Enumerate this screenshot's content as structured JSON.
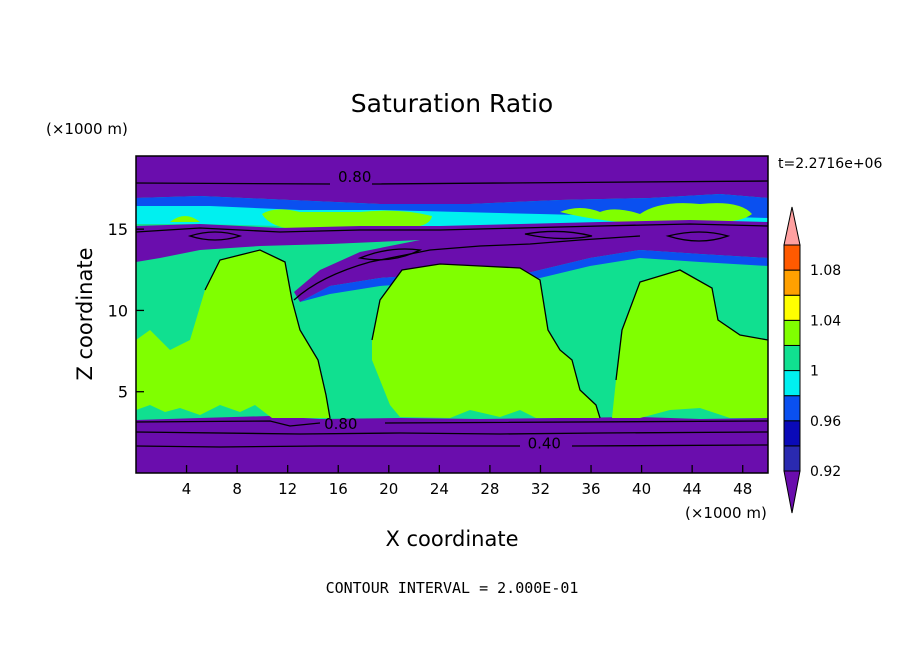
{
  "chart_data": {
    "type": "heatmap",
    "title": "Saturation Ratio",
    "xlabel": "X coordinate",
    "ylabel": "Z coordinate",
    "x_unit": "(×1000 m)",
    "y_unit": "(×1000 m)",
    "time_label": "t=2.2716e+06",
    "footer": "CONTOUR INTERVAL = 2.000E-01",
    "xlim": [
      0,
      50
    ],
    "ylim": [
      0,
      19.5
    ],
    "x_ticks": [
      4,
      8,
      12,
      16,
      20,
      24,
      28,
      32,
      36,
      40,
      44,
      48
    ],
    "x_tick_labels": [
      "4",
      "8",
      "12",
      "16",
      "20",
      "24",
      "28",
      "32",
      "36",
      "40",
      "44",
      "48"
    ],
    "y_ticks": [
      5,
      10,
      15
    ],
    "y_tick_labels": [
      "5",
      "10",
      "15"
    ],
    "contour_labels": [
      {
        "text": "0.80",
        "x": 17.3,
        "y": 18.2
      },
      {
        "text": "0.80",
        "x": 16.2,
        "y": 3.0
      },
      {
        "text": "0.40",
        "x": 32.3,
        "y": 1.8
      }
    ],
    "colorbar": {
      "levels": [
        0.92,
        0.94,
        0.96,
        0.98,
        1.0,
        1.02,
        1.04,
        1.06,
        1.08,
        1.1
      ],
      "colors": [
        "#6a0dad",
        "#2a2ab0",
        "#0a0ab8",
        "#0a50f0",
        "#00f0f0",
        "#10e090",
        "#80ff00",
        "#ffff00",
        "#ffa000",
        "#ff5a00",
        "#ff2020",
        "#ffa0a0"
      ],
      "tick_labels": [
        "0.92",
        "0.96",
        "1",
        "1.04",
        "1.08"
      ],
      "tick_values": [
        0.92,
        0.96,
        1.0,
        1.04,
        1.08
      ]
    },
    "regions": {
      "purple": "#6a0dad",
      "blue": "#0a50f0",
      "cyan": "#00f0f0",
      "green": "#10e090",
      "lime": "#80ff00"
    }
  }
}
